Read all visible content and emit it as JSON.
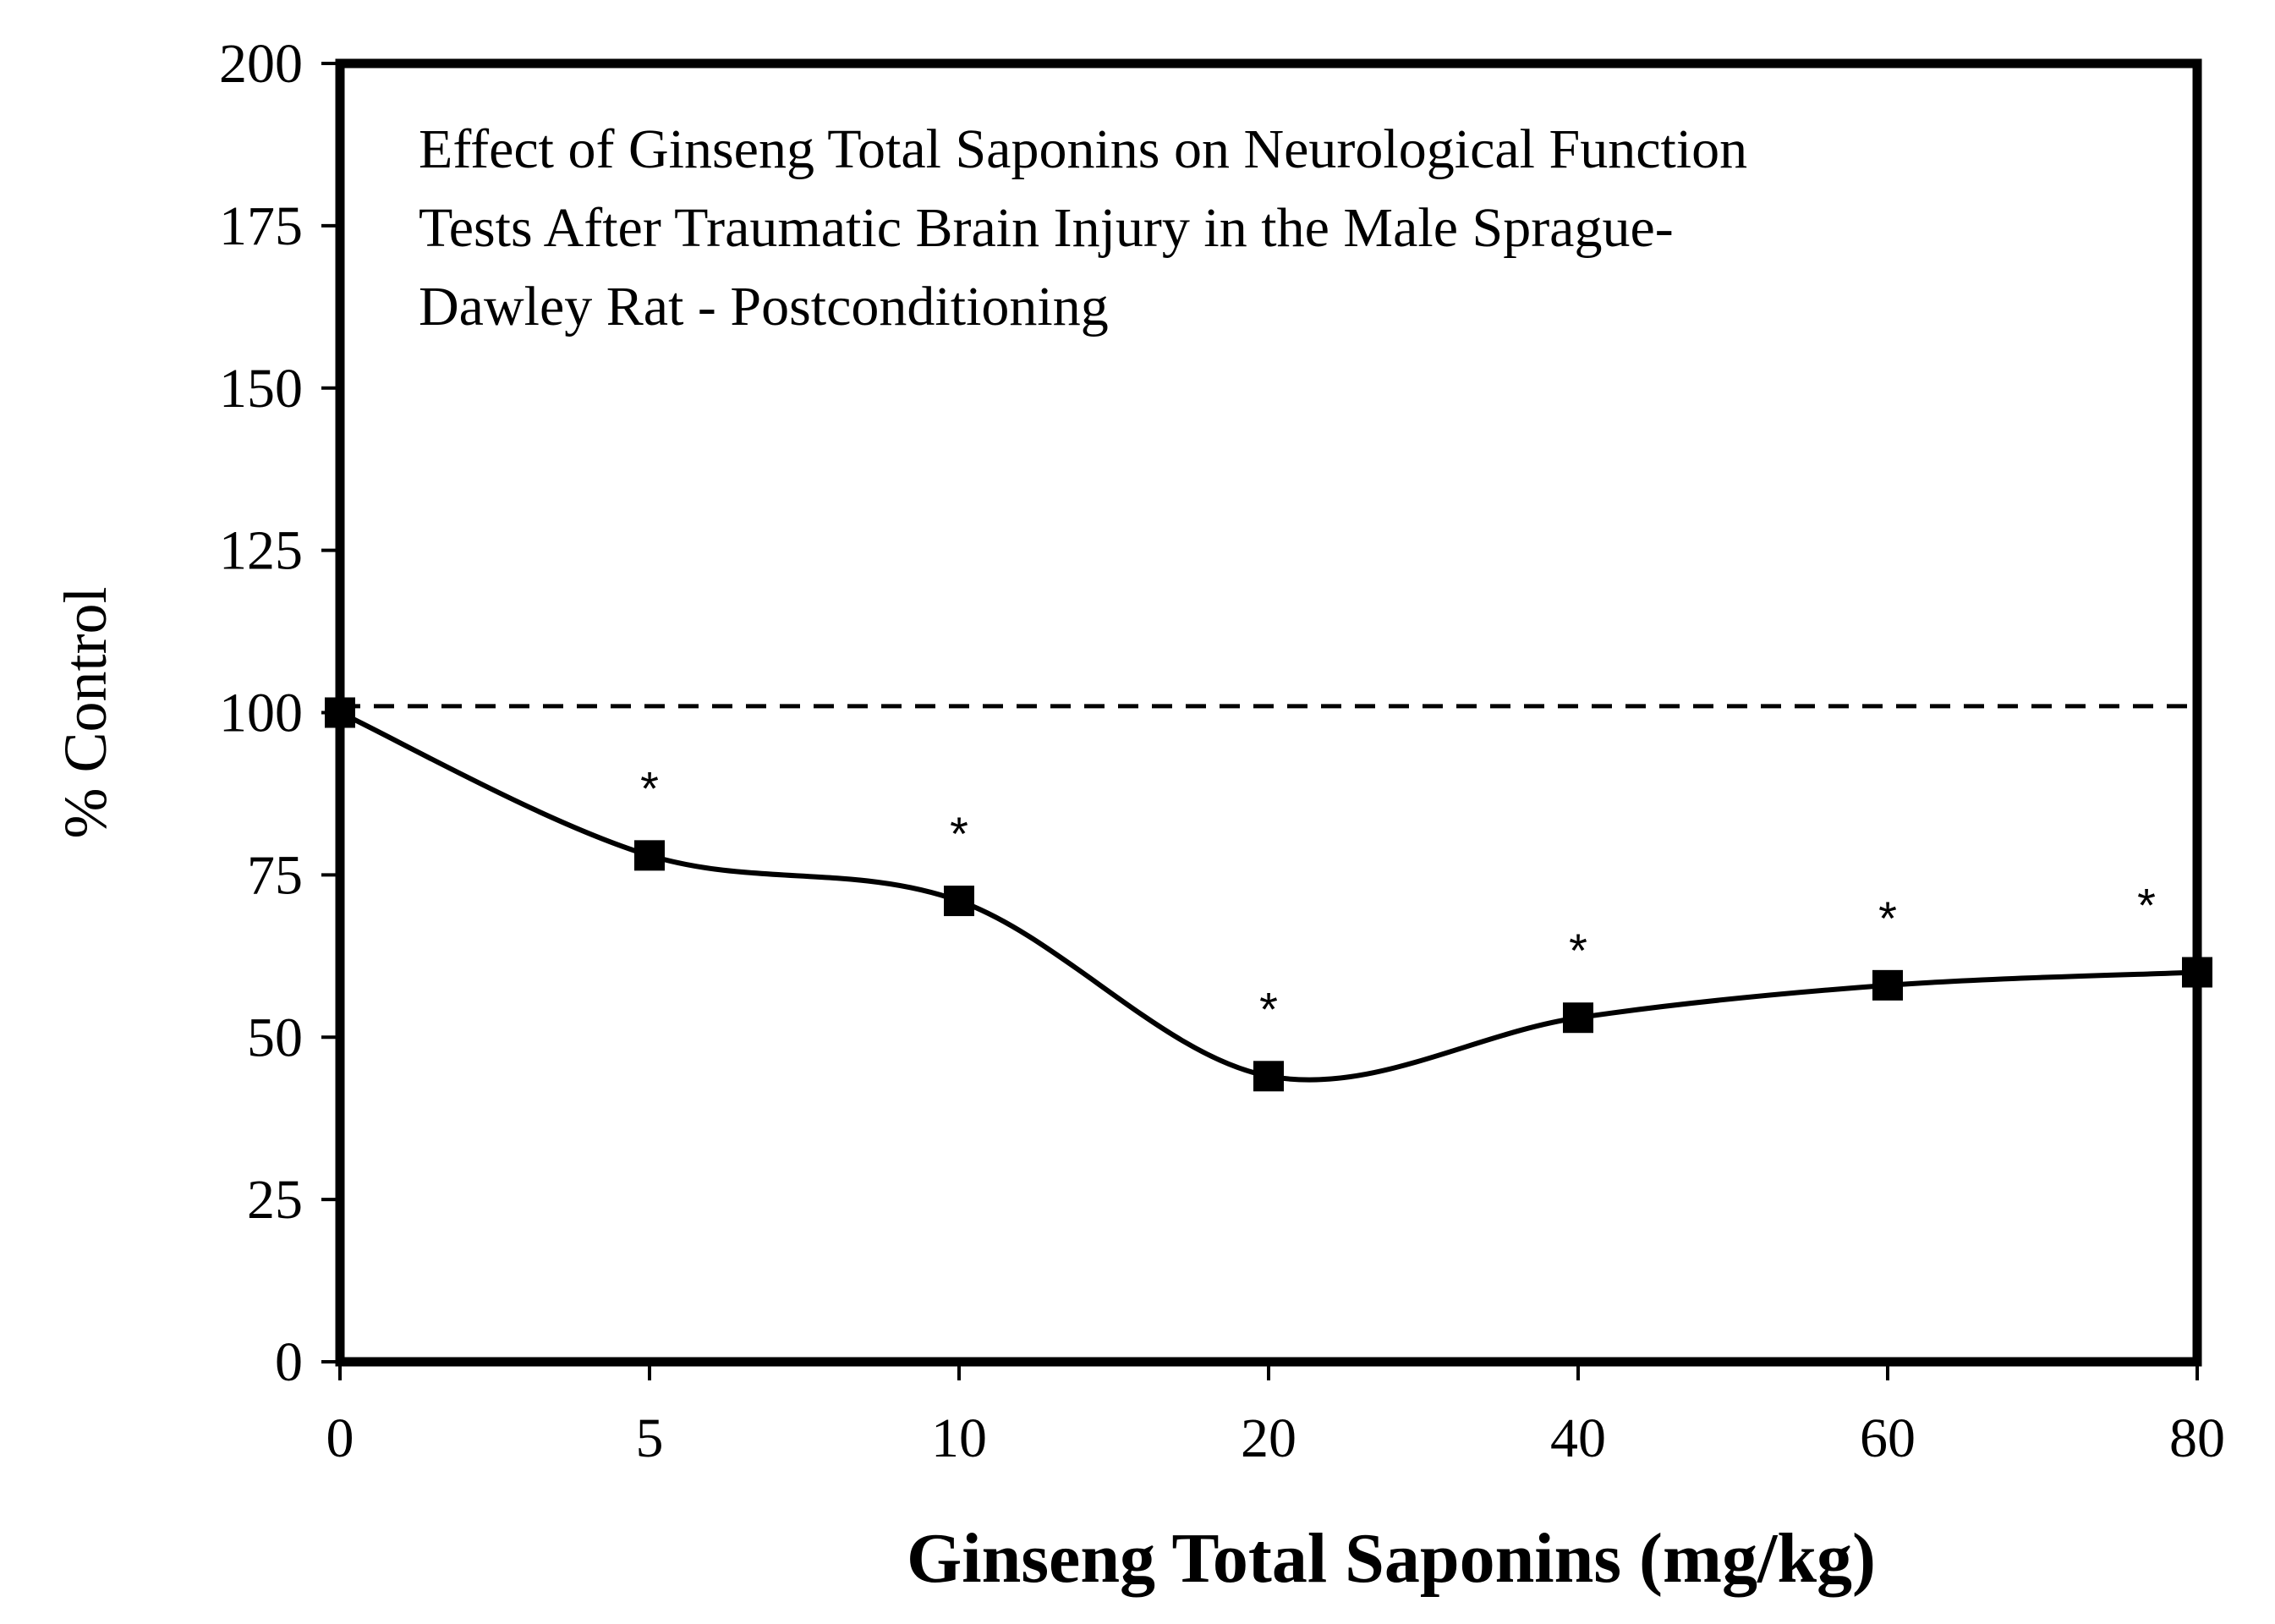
{
  "chart_data": {
    "type": "line",
    "title_lines": [
      "Effect of Ginseng Total Saponins on Neurological Function",
      "Tests After Traumatic Brain Injury in the Male Sprague-",
      "Dawley Rat - Postconditioning"
    ],
    "xlabel": "Ginseng Total Saponins (mg/kg)",
    "ylabel": "% Control",
    "categories": [
      "0",
      "5",
      "10",
      "20",
      "40",
      "60",
      "80"
    ],
    "series": [
      {
        "name": "Neurological function",
        "values": [
          100,
          78,
          71,
          44,
          53,
          58,
          60
        ],
        "marker": "square",
        "significant": [
          false,
          true,
          true,
          true,
          true,
          true,
          true
        ]
      }
    ],
    "significance_marker": "*",
    "reference_line": {
      "value": 101,
      "style": "dashed"
    },
    "ylim": [
      0,
      200
    ],
    "yticks": [
      "0",
      "25",
      "50",
      "75",
      "100",
      "125",
      "150",
      "175",
      "200"
    ],
    "grid": false,
    "legend": "none"
  }
}
